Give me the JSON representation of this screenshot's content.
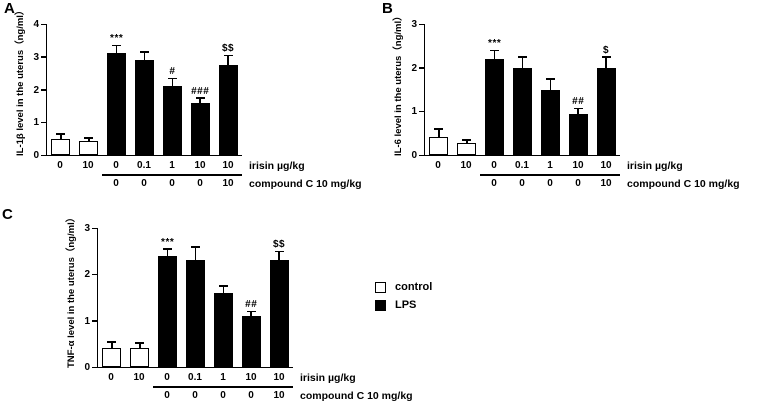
{
  "figure": {
    "background": "#ffffff",
    "bar_color_control": "#ffffff",
    "bar_color_lps": "#000000",
    "axis_color": "#000000"
  },
  "legend": {
    "items": [
      {
        "label": "control",
        "fill": "#ffffff"
      },
      {
        "label": "LPS",
        "fill": "#000000"
      }
    ]
  },
  "chart_data": [
    {
      "type": "bar",
      "panel_letter": "A",
      "ylabel": "IL-1β level in the uterus（ng/ml）",
      "ylim": [
        0,
        4
      ],
      "yticks": [
        0,
        1,
        2,
        3,
        4
      ],
      "row1_label": "irisin µg/kg",
      "row2_label": "compound C 10 mg/kg",
      "categories_row1": [
        "0",
        "10",
        "0",
        "0.1",
        "1",
        "10",
        "10"
      ],
      "categories_row2": [
        "",
        "",
        "0",
        "0",
        "0",
        "0",
        "10"
      ],
      "groups": [
        "control",
        "control",
        "LPS",
        "LPS",
        "LPS",
        "LPS",
        "LPS"
      ],
      "values": [
        0.5,
        0.42,
        3.1,
        2.9,
        2.1,
        1.6,
        2.75
      ],
      "errors": [
        0.15,
        0.1,
        0.25,
        0.25,
        0.25,
        0.15,
        0.3
      ],
      "annotations": [
        "",
        "",
        "***",
        "",
        "#",
        "###",
        "$$"
      ]
    },
    {
      "type": "bar",
      "panel_letter": "B",
      "ylabel": "IL-6 level in the uterus（ng/ml）",
      "ylim": [
        0,
        3
      ],
      "yticks": [
        0,
        1,
        2,
        3
      ],
      "row1_label": "irisin µg/kg",
      "row2_label": "compound C 10 mg/kg",
      "categories_row1": [
        "0",
        "10",
        "0",
        "0.1",
        "1",
        "10",
        "10"
      ],
      "categories_row2": [
        "",
        "",
        "0",
        "0",
        "0",
        "0",
        "10"
      ],
      "groups": [
        "control",
        "control",
        "LPS",
        "LPS",
        "LPS",
        "LPS",
        "LPS"
      ],
      "values": [
        0.42,
        0.27,
        2.2,
        2.0,
        1.5,
        0.95,
        2.0
      ],
      "errors": [
        0.18,
        0.08,
        0.2,
        0.25,
        0.25,
        0.12,
        0.25
      ],
      "annotations": [
        "",
        "",
        "***",
        "",
        "",
        "##",
        "$"
      ]
    },
    {
      "type": "bar",
      "panel_letter": "C",
      "ylabel": "TNF-α level in the uterus（ng/ml）",
      "ylim": [
        0,
        3
      ],
      "yticks": [
        0,
        1,
        2,
        3
      ],
      "row1_label": "irisin µg/kg",
      "row2_label": "compound C 10 mg/kg",
      "categories_row1": [
        "0",
        "10",
        "0",
        "0.1",
        "1",
        "10",
        "10"
      ],
      "categories_row2": [
        "",
        "",
        "0",
        "0",
        "0",
        "0",
        "10"
      ],
      "groups": [
        "control",
        "control",
        "LPS",
        "LPS",
        "LPS",
        "LPS",
        "LPS"
      ],
      "values": [
        0.4,
        0.4,
        2.4,
        2.3,
        1.6,
        1.1,
        2.3
      ],
      "errors": [
        0.15,
        0.12,
        0.15,
        0.3,
        0.15,
        0.1,
        0.2
      ],
      "annotations": [
        "",
        "",
        "***",
        "",
        "",
        "##",
        "$$"
      ]
    }
  ]
}
